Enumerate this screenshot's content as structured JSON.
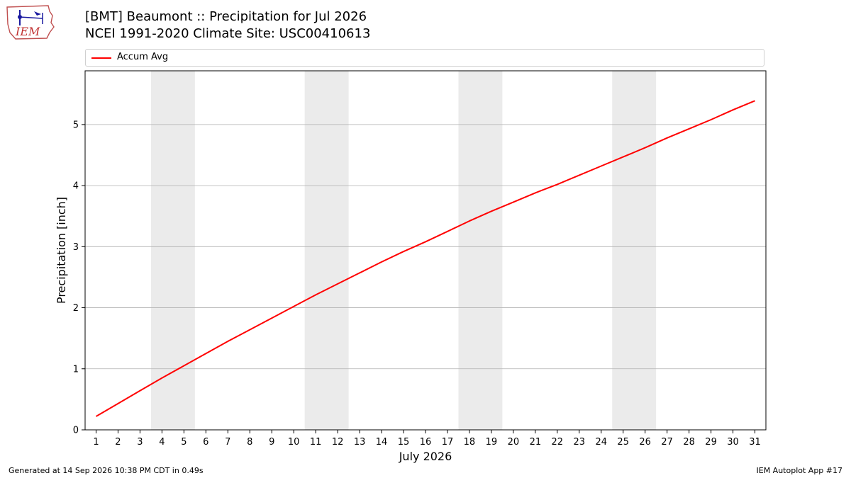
{
  "header": {
    "title_line1": "[BMT] Beaumont :: Precipitation for Jul 2026",
    "title_line2": "NCEI 1991-2020 Climate Site: USC00410613"
  },
  "logo": {
    "text": "IEM"
  },
  "footer": {
    "left": "Generated at 14 Sep 2026 10:38 PM CDT in 0.49s",
    "right": "IEM Autoplot App #17"
  },
  "colors": {
    "line": "#ff0000",
    "weekend_shade": "#ebebeb",
    "grid": "#b0b0b0"
  },
  "chart_data": {
    "type": "line",
    "xlabel": "July 2026",
    "ylabel": "Precipitation [inch]",
    "xlim": [
      0.5,
      31.5
    ],
    "ylim": [
      0,
      5.88
    ],
    "yticks": [
      0,
      1,
      2,
      3,
      4,
      5
    ],
    "grid": "horizontal",
    "legend": "top",
    "weekend_bands": [
      [
        4,
        5
      ],
      [
        11,
        12
      ],
      [
        18,
        19
      ],
      [
        25,
        26
      ]
    ],
    "series": [
      {
        "name": "Accum Avg",
        "color": "#ff0000",
        "x": [
          1,
          2,
          3,
          4,
          5,
          6,
          7,
          8,
          9,
          10,
          11,
          12,
          13,
          14,
          15,
          16,
          17,
          18,
          19,
          20,
          21,
          22,
          23,
          24,
          25,
          26,
          27,
          28,
          29,
          30,
          31
        ],
        "values": [
          0.22,
          0.43,
          0.64,
          0.85,
          1.05,
          1.25,
          1.45,
          1.64,
          1.83,
          2.02,
          2.21,
          2.39,
          2.57,
          2.75,
          2.92,
          3.08,
          3.25,
          3.42,
          3.58,
          3.73,
          3.88,
          4.02,
          4.17,
          4.32,
          4.47,
          4.62,
          4.78,
          4.93,
          5.08,
          5.24,
          5.39
        ]
      }
    ]
  }
}
